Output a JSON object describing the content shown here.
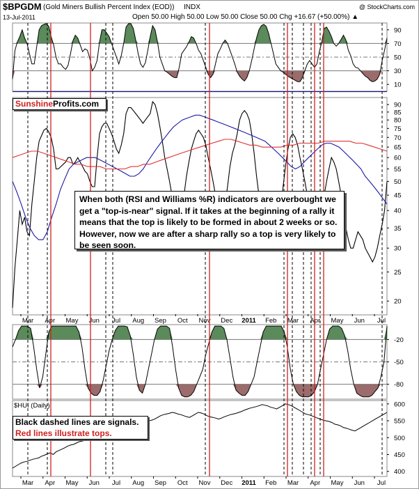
{
  "header": {
    "symbol": "$BPGDM",
    "description": "(Gold Miners Bullish Percent Index (EOD))",
    "exchange": "INDX",
    "credit": "@ StockCharts.com",
    "date": "13-Jul-2011",
    "ohlc": "Open 50.00  High 50.00  Low 50.00  Close 50.00  Chg +16.67 (+50.00%) ▲"
  },
  "annotations": {
    "brand_left": "Sunshine",
    "brand_right": "Profits.com",
    "main_note": "When both (RSI and Williams %R) indicators are overbought we get a \"top-is-near\" signal. If it takes at the beginning of a rally it means that the top is likely to be formed in about 2 weeks or so. However, now we are after a sharp rally so a top is very likely to be seen soon.",
    "legend_black": "Black dashed lines are signals.",
    "legend_red": "Red lines illustrate tops."
  },
  "colors": {
    "overbought_fill": "#5b8a5b",
    "oversold_fill": "#9c6b6b",
    "price_line": "#000000",
    "ma_short": "#1a1aa6",
    "ma_long": "#e03030",
    "red_signal": "#d02020",
    "separator": "#1a1a8c"
  },
  "chart_data": [
    {
      "type": "line",
      "name": "rsi-panel",
      "y_ticks": [
        10,
        30,
        50,
        70,
        90
      ],
      "ylim": [
        0,
        100
      ],
      "overbought": 70,
      "oversold": 30,
      "values": [
        18,
        60,
        72,
        80,
        90,
        78,
        70,
        55,
        40,
        40,
        65,
        90,
        96,
        98,
        99,
        95,
        80,
        68,
        50,
        40,
        40,
        35,
        32,
        38,
        55,
        74,
        82,
        78,
        68,
        58,
        62,
        60,
        48,
        30,
        35,
        45,
        72,
        90,
        90,
        85,
        80,
        70,
        60,
        50,
        40,
        52,
        70,
        94,
        99,
        99,
        92,
        75,
        55,
        40,
        35,
        42,
        60,
        80,
        96,
        90,
        72,
        50,
        40,
        30,
        28,
        25,
        22,
        20,
        20,
        35,
        55,
        60,
        65,
        72,
        80,
        78,
        70,
        60,
        55,
        45,
        35,
        25,
        20,
        25,
        40,
        55,
        62,
        70,
        75,
        70,
        60,
        50,
        40,
        28,
        22,
        18,
        15,
        20,
        30,
        45,
        62,
        78,
        90,
        96,
        98,
        95,
        85,
        70,
        55,
        40,
        35,
        30,
        28,
        25,
        22,
        20,
        18,
        16,
        14,
        14,
        20,
        30,
        40,
        45,
        40,
        35,
        40,
        58,
        72,
        92,
        94,
        88,
        80,
        70,
        66,
        70,
        76,
        82,
        75,
        60,
        52,
        40,
        35,
        34,
        30,
        26,
        22,
        20,
        16,
        14,
        15,
        18,
        25,
        45,
        60,
        78
      ]
    },
    {
      "type": "line",
      "name": "bpgdm-panel",
      "y_ticks": [
        20,
        25,
        30,
        35,
        40,
        45,
        50,
        55,
        60,
        65,
        70,
        75,
        80,
        85,
        90
      ],
      "ylim": [
        18,
        95
      ],
      "series": [
        {
          "name": "$BPGDM",
          "values": [
            19,
            26,
            32,
            40,
            36,
            38,
            34,
            33,
            42,
            50,
            60,
            68,
            71,
            74,
            75,
            73,
            70,
            64,
            55,
            55,
            56,
            57,
            58,
            60,
            60,
            57,
            58,
            60,
            58,
            56,
            54,
            53,
            50,
            48,
            48,
            60,
            72,
            76,
            78,
            78,
            75,
            72,
            68,
            64,
            62,
            66,
            72,
            84,
            88,
            88,
            86,
            84,
            82,
            80,
            78,
            80,
            82,
            84,
            92,
            90,
            84,
            76,
            68,
            60,
            55,
            50,
            45,
            42,
            40,
            38,
            40,
            45,
            52,
            58,
            64,
            68,
            72,
            74,
            72,
            70,
            66,
            60,
            55,
            50,
            45,
            40,
            35,
            38,
            42,
            48,
            56,
            62,
            66,
            72,
            80,
            84,
            86,
            84,
            80,
            72,
            62,
            52,
            45,
            40,
            38,
            36,
            35,
            34,
            33,
            33,
            35,
            40,
            48,
            56,
            64,
            70,
            72,
            70,
            66,
            60,
            55,
            50,
            45,
            40,
            36,
            33,
            32,
            35,
            40,
            45,
            50,
            55,
            60,
            58,
            55,
            50,
            45,
            40,
            35,
            32,
            30,
            30,
            32,
            34,
            33,
            32,
            30,
            29,
            28,
            27,
            28,
            30,
            33,
            36,
            40,
            50
          ]
        },
        {
          "name": "MA-short",
          "values": [
            50,
            46,
            42,
            38,
            35,
            33,
            32,
            32,
            34,
            38,
            42,
            47,
            51,
            55,
            57,
            58,
            59,
            60,
            60,
            60,
            59,
            58,
            57,
            56,
            55,
            54,
            53,
            52,
            52,
            53,
            55,
            58,
            61,
            64,
            67,
            70,
            73,
            76,
            78,
            80,
            81,
            82,
            83,
            83,
            82,
            81,
            80,
            79,
            78,
            77,
            76,
            75,
            74,
            73,
            72,
            71,
            70,
            69,
            68,
            66,
            64,
            62,
            60,
            58,
            56,
            55,
            56,
            58,
            60,
            62,
            64,
            66,
            67,
            67,
            66,
            65,
            63,
            61,
            59,
            57,
            55,
            52,
            50,
            48,
            46,
            44,
            42
          ]
        },
        {
          "name": "MA-long",
          "values": [
            60,
            61,
            62,
            63,
            63,
            62,
            61,
            60,
            59,
            58,
            57,
            57,
            56,
            56,
            56,
            55,
            55,
            55,
            55,
            56,
            56,
            57,
            57,
            58,
            59,
            60,
            61,
            62,
            63,
            64,
            65,
            66,
            67,
            68,
            69,
            69,
            68,
            67,
            66,
            66,
            65,
            65,
            65,
            65,
            66,
            66,
            67,
            67,
            67,
            67,
            68,
            68,
            68,
            68,
            68,
            67,
            67,
            66,
            65,
            64,
            63
          ]
        }
      ]
    },
    {
      "type": "line",
      "name": "williams-r-panel",
      "y_ticks": [
        -20,
        -50,
        -80
      ],
      "ylim": [
        -100,
        0
      ],
      "overbought": -20,
      "oversold": -80,
      "values": [
        -30,
        -20,
        -8,
        -2,
        -2,
        -2,
        -5,
        -30,
        -60,
        -85,
        -70,
        -40,
        -10,
        -2,
        -2,
        -2,
        -2,
        -2,
        -2,
        -2,
        -2,
        -2,
        -10,
        -30,
        -60,
        -85,
        -92,
        -95,
        -95,
        -90,
        -75,
        -55,
        -35,
        -20,
        -8,
        -2,
        -2,
        -2,
        -3,
        -15,
        -40,
        -70,
        -88,
        -92,
        -80,
        -60,
        -40,
        -20,
        -6,
        -2,
        -2,
        -2,
        -5,
        -30,
        -60,
        -85,
        -95,
        -97,
        -97,
        -95,
        -90,
        -80,
        -70,
        -60,
        -40,
        -25,
        -10,
        -2,
        -2,
        -2,
        -5,
        -20,
        -45,
        -70,
        -88,
        -92,
        -95,
        -95,
        -90,
        -80,
        -70,
        -50,
        -30,
        -10,
        -2,
        -2,
        -2,
        -2,
        -2,
        -2,
        -10,
        -30,
        -60,
        -80,
        -90,
        -95,
        -97,
        -97,
        -97,
        -95,
        -90,
        -80,
        -60,
        -40,
        -20,
        -6,
        -2,
        -2,
        -2,
        -5,
        -15,
        -35,
        -60,
        -80,
        -92,
        -95,
        -97,
        -97,
        -97,
        -95,
        -90,
        -85,
        -70,
        -50,
        -2
      ]
    },
    {
      "type": "line",
      "name": "hui-panel",
      "title": "$HUI (Daily)",
      "y_ticks": [
        400,
        450,
        500,
        550,
        600
      ],
      "ylim": [
        385,
        610
      ],
      "values": [
        410,
        415,
        420,
        425,
        428,
        430,
        433,
        436,
        438,
        440,
        445,
        448,
        452,
        455,
        450,
        458,
        462,
        466,
        470,
        475,
        478,
        480,
        484,
        488,
        490,
        492,
        495,
        498,
        500,
        502,
        498,
        495,
        500,
        505,
        502,
        498,
        505,
        510,
        515,
        520,
        525,
        528,
        532,
        535,
        540,
        545,
        548,
        550,
        552,
        555,
        560,
        565,
        568,
        570,
        572,
        575,
        573,
        570,
        568,
        565,
        562,
        560,
        565,
        570,
        575,
        573,
        570,
        565,
        562,
        560,
        558,
        555,
        558,
        562,
        565,
        568,
        570,
        572,
        575,
        578,
        582,
        585,
        588,
        590,
        592,
        595,
        598,
        596,
        594,
        590,
        588,
        585,
        590,
        595,
        600,
        598,
        595,
        590,
        585,
        580,
        575,
        570,
        568,
        565,
        562,
        558,
        555,
        552,
        550,
        548,
        545,
        540,
        538,
        535,
        530,
        528,
        525,
        522,
        520,
        525,
        530,
        535,
        540,
        545,
        550,
        555,
        560,
        565,
        570,
        575
      ]
    }
  ],
  "x_axis": {
    "month_labels_top": [
      "Mar",
      "Apr",
      "May",
      "Jun",
      "Jul",
      "Aug",
      "Sep",
      "Oct",
      "Nov",
      "Dec",
      "2011",
      "Feb",
      "Mar",
      "Apr",
      "May",
      "Jun",
      "Jul"
    ],
    "month_labels_mid": [
      "Mar",
      "Apr",
      "May",
      "Jun",
      "Jul",
      "Aug",
      "Sep",
      "Oct",
      "Nov",
      "Dec",
      "2011",
      "Feb",
      "Mar",
      "Apr",
      "May",
      "Jun",
      "Jul"
    ],
    "month_labels_bottom": [
      "Mar",
      "Apr",
      "May",
      "Jun",
      "Jul",
      "Aug",
      "Sep",
      "Oct",
      "Nov",
      "Dec",
      "2011",
      "Feb",
      "Mar",
      "Apr",
      "May",
      "Jun",
      "Jul"
    ]
  }
}
